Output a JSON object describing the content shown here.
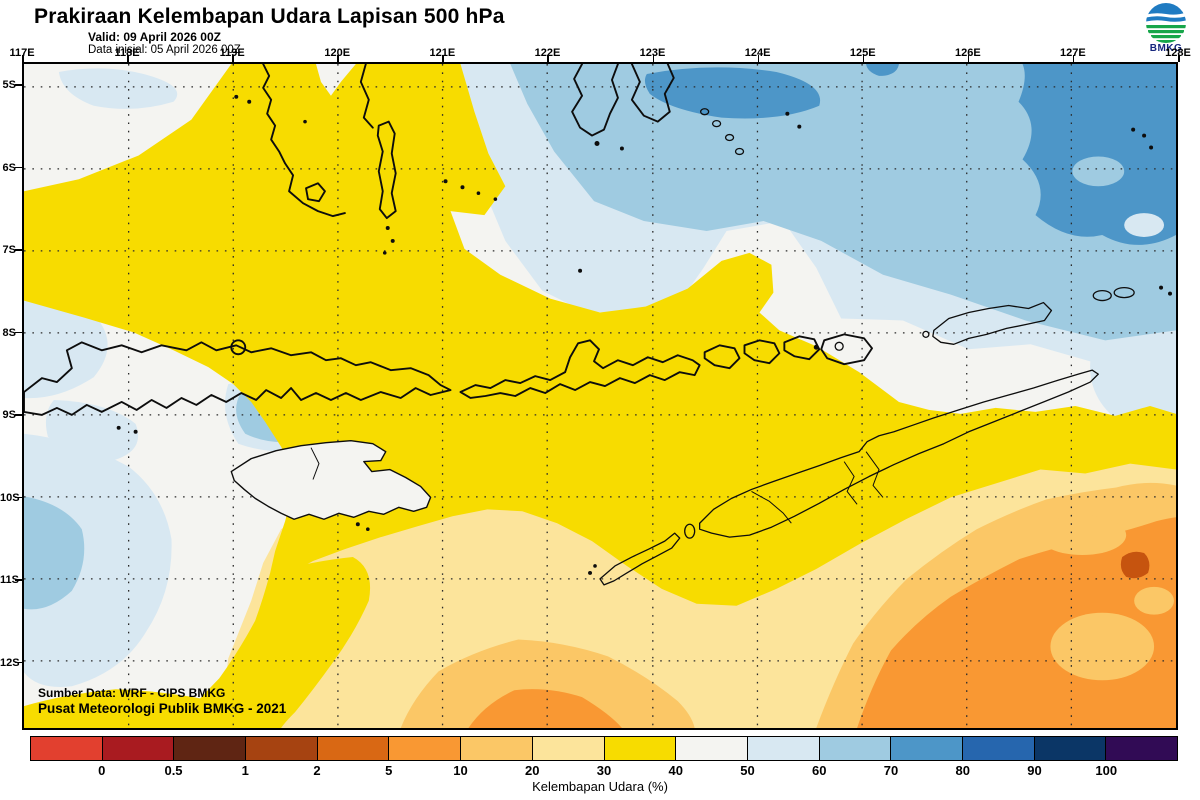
{
  "header": {
    "title": "Prakiraan Kelembapan Udara Lapisan 500 hPa",
    "valid": "Valid: 09 April 2026 00Z",
    "init": "Data inisial: 05 April 2026 00Z"
  },
  "logo": {
    "text": "BMKG"
  },
  "map": {
    "lon_labels": [
      "117E",
      "118E",
      "119E",
      "120E",
      "121E",
      "122E",
      "123E",
      "124E",
      "125E",
      "126E",
      "127E",
      "128E"
    ],
    "lat_labels": [
      "5S",
      "6S",
      "7S",
      "8S",
      "9S",
      "10S",
      "11S",
      "12S"
    ],
    "source_line1": "Sumber Data: WRF - CIPS BMKG",
    "source_line2": "Pusat Meteorologi Publik BMKG - 2021"
  },
  "colorbar": {
    "label": "Kelembapan Udara (%)",
    "tick_labels": [
      "0",
      "0.5",
      "1",
      "2",
      "5",
      "10",
      "20",
      "30",
      "40",
      "50",
      "60",
      "70",
      "80",
      "90",
      "100"
    ],
    "segment_colors": [
      "#E2402F",
      "#A91B20",
      "#5F2513",
      "#A64311",
      "#D96814",
      "#F99833",
      "#FBC766",
      "#FCE49B",
      "#F7DC00",
      "#F4F4F1",
      "#D8E8F2",
      "#9FCBE1",
      "#4D96C8",
      "#2666AE",
      "#0B3666",
      "#310B55"
    ],
    "unit": "%",
    "quantity": "Kelembapan Udara"
  }
}
